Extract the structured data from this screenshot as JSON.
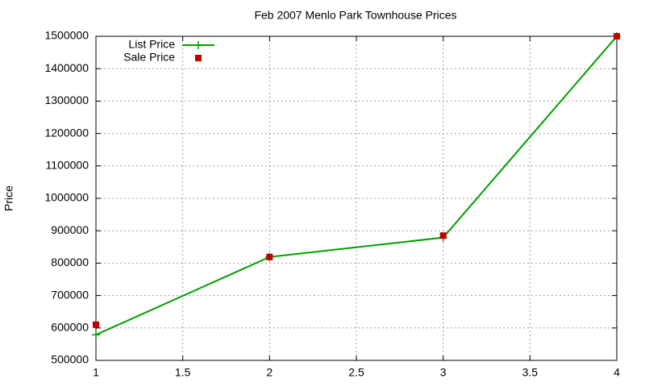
{
  "chart_data": {
    "type": "line",
    "title": "Feb 2007 Menlo Park Townhouse Prices",
    "y_label": "Price",
    "x": [
      1,
      2,
      3,
      4
    ],
    "series": [
      {
        "name": "List Price",
        "color": "#00a000",
        "mode": "lines+markers",
        "values": [
          579000,
          819000,
          879000,
          1500000
        ]
      },
      {
        "name": "Sale Price",
        "color": "#c00000",
        "mode": "markers",
        "values": [
          610000,
          819000,
          885000,
          1500000
        ]
      }
    ],
    "xlim": [
      1,
      4
    ],
    "xticks": [
      1,
      1.5,
      2,
      2.5,
      3,
      3.5,
      4
    ],
    "ylim": [
      500000,
      1500000
    ],
    "yticks": [
      500000,
      600000,
      700000,
      800000,
      900000,
      1000000,
      1100000,
      1200000,
      1300000,
      1400000,
      1500000
    ],
    "grid": true,
    "legend": "top left"
  }
}
